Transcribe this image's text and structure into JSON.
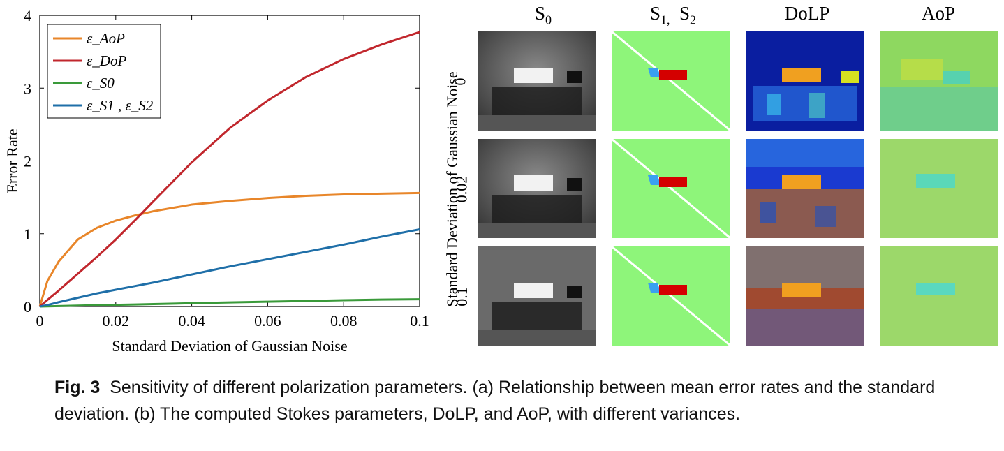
{
  "chart_data": {
    "type": "line",
    "xlabel": "Standard Deviation of Gaussian Noise",
    "ylabel": "Error Rate",
    "xlim": [
      0,
      0.1
    ],
    "ylim": [
      0,
      4
    ],
    "xticks": [
      "0",
      "0.02",
      "0.04",
      "0.06",
      "0.08",
      "0.1"
    ],
    "yticks": [
      "0",
      "1",
      "2",
      "3",
      "4"
    ],
    "legend_position": "top-left",
    "grid": false,
    "x": [
      0,
      0.002,
      0.005,
      0.01,
      0.015,
      0.02,
      0.025,
      0.03,
      0.04,
      0.05,
      0.06,
      0.07,
      0.08,
      0.09,
      0.1
    ],
    "series": [
      {
        "name": "ε_AoP",
        "color": "#E8862A",
        "values": [
          0,
          0.35,
          0.62,
          0.92,
          1.08,
          1.18,
          1.25,
          1.31,
          1.4,
          1.45,
          1.49,
          1.52,
          1.54,
          1.55,
          1.56
        ]
      },
      {
        "name": "ε_DoP",
        "color": "#C1272D",
        "values": [
          0,
          0.09,
          0.22,
          0.45,
          0.68,
          0.92,
          1.18,
          1.45,
          1.98,
          2.45,
          2.83,
          3.15,
          3.4,
          3.6,
          3.77
        ]
      },
      {
        "name": "ε_S0",
        "color": "#3A9A3A",
        "values": [
          0,
          0.002,
          0.006,
          0.012,
          0.018,
          0.023,
          0.028,
          0.034,
          0.045,
          0.056,
          0.066,
          0.076,
          0.086,
          0.095,
          0.1
        ]
      },
      {
        "name": "ε_S1 , ε_S2",
        "color": "#1F6FA8",
        "values": [
          0,
          0.02,
          0.06,
          0.12,
          0.18,
          0.23,
          0.28,
          0.33,
          0.44,
          0.55,
          0.65,
          0.75,
          0.85,
          0.96,
          1.06
        ]
      }
    ]
  },
  "figure_b": {
    "columns": [
      "S",
      "S",
      "DoLP",
      "AoP"
    ],
    "column_subscripts": [
      "0",
      "1,",
      "2"
    ],
    "row_axis_label": "Standard Deviation of Gaussian Noise",
    "rows": [
      "0",
      "0.02",
      "0.1"
    ]
  },
  "caption": {
    "label": "Fig. 3",
    "text": "Sensitivity of different polarization parameters. (a) Relationship between mean error rates and the standard deviation. (b) The computed Stokes parameters, DoLP, and AoP, with different variances."
  }
}
